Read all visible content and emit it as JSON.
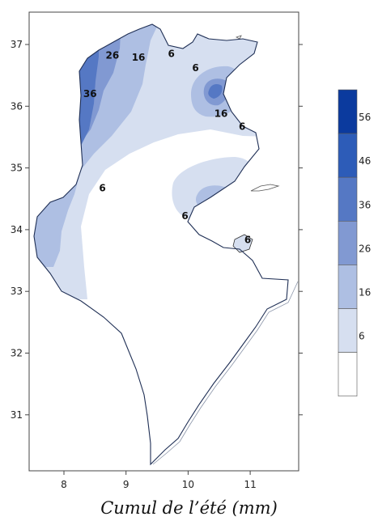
{
  "caption": "Cumul de l’été  (mm)",
  "map": {
    "x_ticks": [
      "8",
      "9",
      "10",
      "11"
    ],
    "y_ticks": [
      "37",
      "36",
      "35",
      "34",
      "33",
      "32",
      "31"
    ],
    "contour_labels": [
      {
        "text": "26",
        "lon": 8.78,
        "lat": 36.77
      },
      {
        "text": "16",
        "lon": 9.2,
        "lat": 36.74
      },
      {
        "text": "6",
        "lon": 9.73,
        "lat": 36.8
      },
      {
        "text": "6",
        "lon": 10.12,
        "lat": 36.57
      },
      {
        "text": "36",
        "lon": 8.42,
        "lat": 36.15
      },
      {
        "text": "16",
        "lon": 10.53,
        "lat": 35.83
      },
      {
        "text": "6",
        "lon": 10.87,
        "lat": 35.62
      },
      {
        "text": "6",
        "lon": 8.62,
        "lat": 34.62
      },
      {
        "text": "6",
        "lon": 9.95,
        "lat": 34.17
      },
      {
        "text": "6",
        "lon": 10.96,
        "lat": 33.78
      }
    ]
  },
  "legend": {
    "labels": [
      "56",
      "46",
      "36",
      "26",
      "16",
      "6"
    ],
    "colors": [
      "#0b3a9e",
      "#2d5cb8",
      "#5578c4",
      "#8199d2",
      "#aebfe3",
      "#d6dff0",
      "#ffffff"
    ]
  }
}
